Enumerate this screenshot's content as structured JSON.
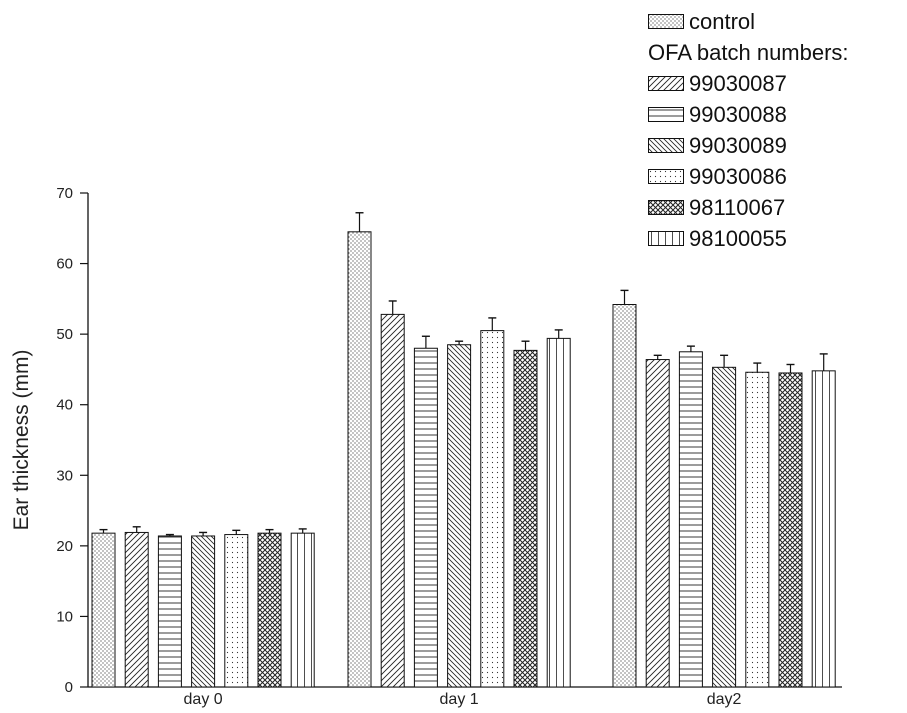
{
  "chart_data": {
    "type": "bar",
    "ylabel": "Ear thickness (mm)",
    "ylim": [
      0,
      70
    ],
    "yticks": [
      "0",
      "10",
      "20",
      "30",
      "40",
      "50",
      "60",
      "70"
    ],
    "categories": [
      "day 0",
      "day 1",
      "day2"
    ],
    "legend_title": "OFA batch numbers:",
    "legend_position": "top-right",
    "series": [
      {
        "name": "control",
        "pattern": "dense-dots",
        "values": [
          21.8,
          64.5,
          54.2
        ],
        "errors": [
          0.5,
          2.7,
          2.0
        ]
      },
      {
        "name": "99030087",
        "pattern": "diagonal-forward",
        "values": [
          21.9,
          52.8,
          46.4
        ],
        "errors": [
          0.8,
          1.9,
          0.6
        ]
      },
      {
        "name": "99030088",
        "pattern": "horizontal",
        "values": [
          21.4,
          48.0,
          47.5
        ],
        "errors": [
          0.2,
          1.7,
          0.8
        ]
      },
      {
        "name": "99030089",
        "pattern": "diagonal-back",
        "values": [
          21.4,
          48.5,
          45.3
        ],
        "errors": [
          0.5,
          0.5,
          1.7
        ]
      },
      {
        "name": "99030086",
        "pattern": "dots",
        "values": [
          21.6,
          50.5,
          44.6
        ],
        "errors": [
          0.6,
          1.8,
          1.3
        ]
      },
      {
        "name": "98110067",
        "pattern": "crosshatch",
        "values": [
          21.8,
          47.7,
          44.5
        ],
        "errors": [
          0.5,
          1.3,
          1.2
        ]
      },
      {
        "name": "98100055",
        "pattern": "vertical",
        "values": [
          21.8,
          49.4,
          44.8
        ],
        "errors": [
          0.6,
          1.2,
          2.4
        ]
      }
    ]
  }
}
